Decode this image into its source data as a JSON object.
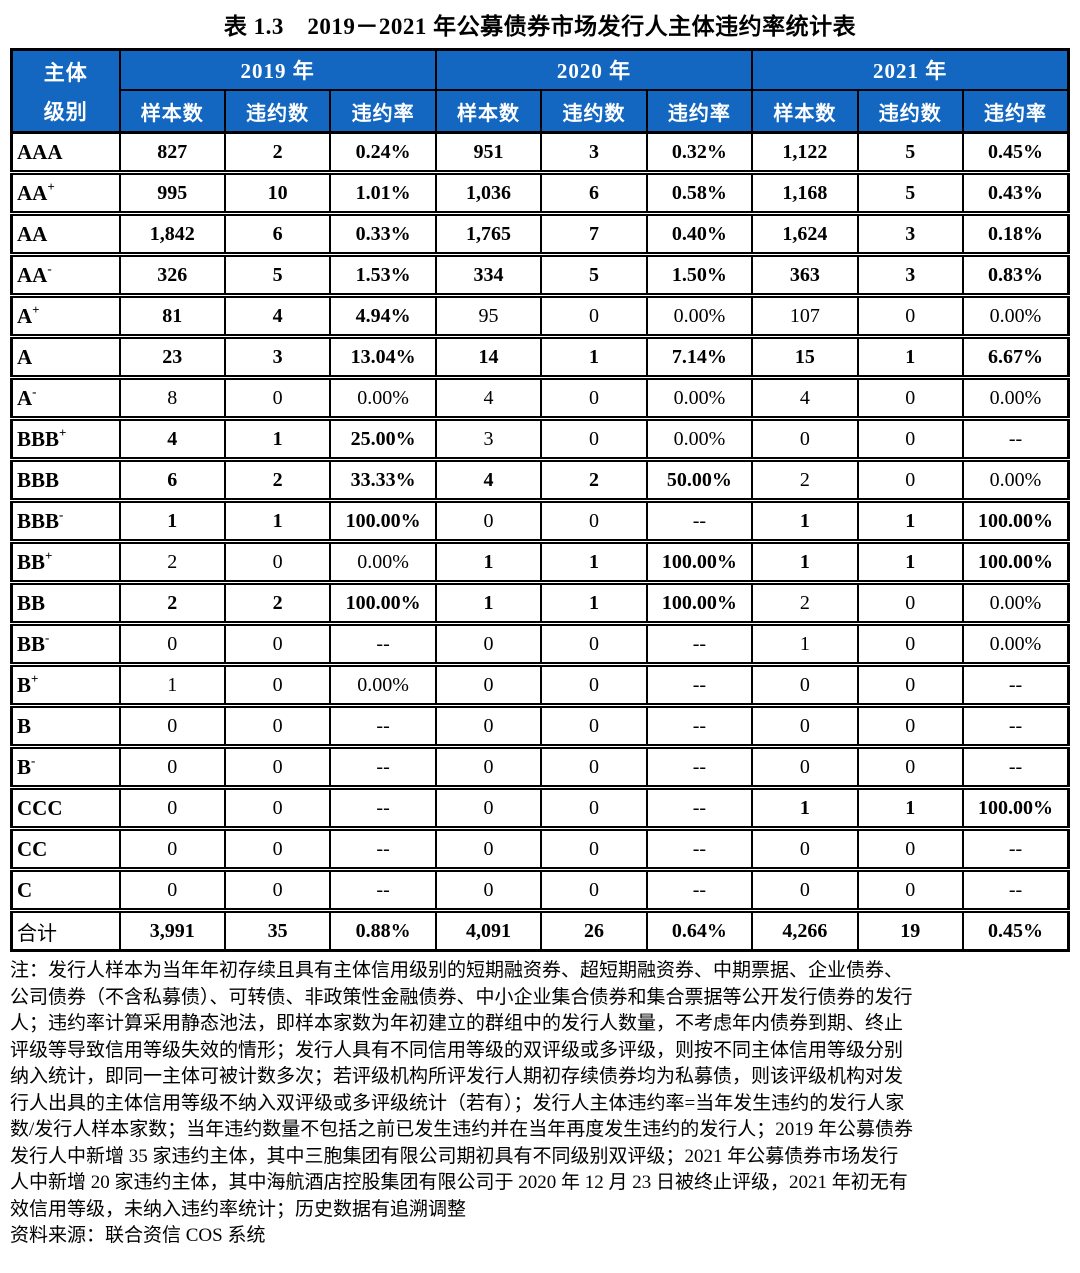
{
  "title": "表 1.3　2019－2021 年公募债券市场发行人主体违约率统计表",
  "colors": {
    "header_bg": "#1467C0",
    "header_text": "#FFFFFF",
    "border": "#000000"
  },
  "table": {
    "corner": {
      "line1": "主体",
      "line2": "级别"
    },
    "years": [
      "2019 年",
      "2020 年",
      "2021 年"
    ],
    "subheaders": [
      "样本数",
      "违约数",
      "违约率"
    ],
    "rows": [
      {
        "base": "AAA",
        "sup": "",
        "cells": [
          {
            "v": "827",
            "b": true
          },
          {
            "v": "2",
            "b": true
          },
          {
            "v": "0.24%",
            "b": true
          },
          {
            "v": "951",
            "b": true
          },
          {
            "v": "3",
            "b": true
          },
          {
            "v": "0.32%",
            "b": true
          },
          {
            "v": "1,122",
            "b": true
          },
          {
            "v": "5",
            "b": true
          },
          {
            "v": "0.45%",
            "b": true
          }
        ]
      },
      {
        "base": "AA",
        "sup": "+",
        "cells": [
          {
            "v": "995",
            "b": true
          },
          {
            "v": "10",
            "b": true
          },
          {
            "v": "1.01%",
            "b": true
          },
          {
            "v": "1,036",
            "b": true
          },
          {
            "v": "6",
            "b": true
          },
          {
            "v": "0.58%",
            "b": true
          },
          {
            "v": "1,168",
            "b": true
          },
          {
            "v": "5",
            "b": true
          },
          {
            "v": "0.43%",
            "b": true
          }
        ]
      },
      {
        "base": "AA",
        "sup": "",
        "cells": [
          {
            "v": "1,842",
            "b": true
          },
          {
            "v": "6",
            "b": true
          },
          {
            "v": "0.33%",
            "b": true
          },
          {
            "v": "1,765",
            "b": true
          },
          {
            "v": "7",
            "b": true
          },
          {
            "v": "0.40%",
            "b": true
          },
          {
            "v": "1,624",
            "b": true
          },
          {
            "v": "3",
            "b": true
          },
          {
            "v": "0.18%",
            "b": true
          }
        ]
      },
      {
        "base": "AA",
        "sup": "-",
        "cells": [
          {
            "v": "326",
            "b": true
          },
          {
            "v": "5",
            "b": true
          },
          {
            "v": "1.53%",
            "b": true
          },
          {
            "v": "334",
            "b": true
          },
          {
            "v": "5",
            "b": true
          },
          {
            "v": "1.50%",
            "b": true
          },
          {
            "v": "363",
            "b": true
          },
          {
            "v": "3",
            "b": true
          },
          {
            "v": "0.83%",
            "b": true
          }
        ]
      },
      {
        "base": "A",
        "sup": "+",
        "cells": [
          {
            "v": "81",
            "b": true
          },
          {
            "v": "4",
            "b": true
          },
          {
            "v": "4.94%",
            "b": true
          },
          {
            "v": "95",
            "b": false
          },
          {
            "v": "0",
            "b": false
          },
          {
            "v": "0.00%",
            "b": false
          },
          {
            "v": "107",
            "b": false
          },
          {
            "v": "0",
            "b": false
          },
          {
            "v": "0.00%",
            "b": false
          }
        ]
      },
      {
        "base": "A",
        "sup": "",
        "cells": [
          {
            "v": "23",
            "b": true
          },
          {
            "v": "3",
            "b": true
          },
          {
            "v": "13.04%",
            "b": true
          },
          {
            "v": "14",
            "b": true
          },
          {
            "v": "1",
            "b": true
          },
          {
            "v": "7.14%",
            "b": true
          },
          {
            "v": "15",
            "b": true
          },
          {
            "v": "1",
            "b": true
          },
          {
            "v": "6.67%",
            "b": true
          }
        ]
      },
      {
        "base": "A",
        "sup": "-",
        "cells": [
          {
            "v": "8",
            "b": false
          },
          {
            "v": "0",
            "b": false
          },
          {
            "v": "0.00%",
            "b": false
          },
          {
            "v": "4",
            "b": false
          },
          {
            "v": "0",
            "b": false
          },
          {
            "v": "0.00%",
            "b": false
          },
          {
            "v": "4",
            "b": false
          },
          {
            "v": "0",
            "b": false
          },
          {
            "v": "0.00%",
            "b": false
          }
        ]
      },
      {
        "base": "BBB",
        "sup": "+",
        "cells": [
          {
            "v": "4",
            "b": true
          },
          {
            "v": "1",
            "b": true
          },
          {
            "v": "25.00%",
            "b": true
          },
          {
            "v": "3",
            "b": false
          },
          {
            "v": "0",
            "b": false
          },
          {
            "v": "0.00%",
            "b": false
          },
          {
            "v": "0",
            "b": false
          },
          {
            "v": "0",
            "b": false
          },
          {
            "v": "--",
            "b": false
          }
        ]
      },
      {
        "base": "BBB",
        "sup": "",
        "cells": [
          {
            "v": "6",
            "b": true
          },
          {
            "v": "2",
            "b": true
          },
          {
            "v": "33.33%",
            "b": true
          },
          {
            "v": "4",
            "b": true
          },
          {
            "v": "2",
            "b": true
          },
          {
            "v": "50.00%",
            "b": true
          },
          {
            "v": "2",
            "b": false
          },
          {
            "v": "0",
            "b": false
          },
          {
            "v": "0.00%",
            "b": false
          }
        ]
      },
      {
        "base": "BBB",
        "sup": "-",
        "cells": [
          {
            "v": "1",
            "b": true
          },
          {
            "v": "1",
            "b": true
          },
          {
            "v": "100.00%",
            "b": true
          },
          {
            "v": "0",
            "b": false
          },
          {
            "v": "0",
            "b": false
          },
          {
            "v": "--",
            "b": false
          },
          {
            "v": "1",
            "b": true
          },
          {
            "v": "1",
            "b": true
          },
          {
            "v": "100.00%",
            "b": true
          }
        ]
      },
      {
        "base": "BB",
        "sup": "+",
        "cells": [
          {
            "v": "2",
            "b": false
          },
          {
            "v": "0",
            "b": false
          },
          {
            "v": "0.00%",
            "b": false
          },
          {
            "v": "1",
            "b": true
          },
          {
            "v": "1",
            "b": true
          },
          {
            "v": "100.00%",
            "b": true
          },
          {
            "v": "1",
            "b": true
          },
          {
            "v": "1",
            "b": true
          },
          {
            "v": "100.00%",
            "b": true
          }
        ]
      },
      {
        "base": "BB",
        "sup": "",
        "cells": [
          {
            "v": "2",
            "b": true
          },
          {
            "v": "2",
            "b": true
          },
          {
            "v": "100.00%",
            "b": true
          },
          {
            "v": "1",
            "b": true
          },
          {
            "v": "1",
            "b": true
          },
          {
            "v": "100.00%",
            "b": true
          },
          {
            "v": "2",
            "b": false
          },
          {
            "v": "0",
            "b": false
          },
          {
            "v": "0.00%",
            "b": false
          }
        ]
      },
      {
        "base": "BB",
        "sup": "-",
        "cells": [
          {
            "v": "0",
            "b": false
          },
          {
            "v": "0",
            "b": false
          },
          {
            "v": "--",
            "b": false
          },
          {
            "v": "0",
            "b": false
          },
          {
            "v": "0",
            "b": false
          },
          {
            "v": "--",
            "b": false
          },
          {
            "v": "1",
            "b": false
          },
          {
            "v": "0",
            "b": false
          },
          {
            "v": "0.00%",
            "b": false
          }
        ]
      },
      {
        "base": "B",
        "sup": "+",
        "cells": [
          {
            "v": "1",
            "b": false
          },
          {
            "v": "0",
            "b": false
          },
          {
            "v": "0.00%",
            "b": false
          },
          {
            "v": "0",
            "b": false
          },
          {
            "v": "0",
            "b": false
          },
          {
            "v": "--",
            "b": false
          },
          {
            "v": "0",
            "b": false
          },
          {
            "v": "0",
            "b": false
          },
          {
            "v": "--",
            "b": false
          }
        ]
      },
      {
        "base": "B",
        "sup": "",
        "cells": [
          {
            "v": "0",
            "b": false
          },
          {
            "v": "0",
            "b": false
          },
          {
            "v": "--",
            "b": false
          },
          {
            "v": "0",
            "b": false
          },
          {
            "v": "0",
            "b": false
          },
          {
            "v": "--",
            "b": false
          },
          {
            "v": "0",
            "b": false
          },
          {
            "v": "0",
            "b": false
          },
          {
            "v": "--",
            "b": false
          }
        ]
      },
      {
        "base": "B",
        "sup": "-",
        "cells": [
          {
            "v": "0",
            "b": false
          },
          {
            "v": "0",
            "b": false
          },
          {
            "v": "--",
            "b": false
          },
          {
            "v": "0",
            "b": false
          },
          {
            "v": "0",
            "b": false
          },
          {
            "v": "--",
            "b": false
          },
          {
            "v": "0",
            "b": false
          },
          {
            "v": "0",
            "b": false
          },
          {
            "v": "--",
            "b": false
          }
        ]
      },
      {
        "base": "CCC",
        "sup": "",
        "cells": [
          {
            "v": "0",
            "b": false
          },
          {
            "v": "0",
            "b": false
          },
          {
            "v": "--",
            "b": false
          },
          {
            "v": "0",
            "b": false
          },
          {
            "v": "0",
            "b": false
          },
          {
            "v": "--",
            "b": false
          },
          {
            "v": "1",
            "b": true
          },
          {
            "v": "1",
            "b": true
          },
          {
            "v": "100.00%",
            "b": true
          }
        ]
      },
      {
        "base": "CC",
        "sup": "",
        "cells": [
          {
            "v": "0",
            "b": false
          },
          {
            "v": "0",
            "b": false
          },
          {
            "v": "--",
            "b": false
          },
          {
            "v": "0",
            "b": false
          },
          {
            "v": "0",
            "b": false
          },
          {
            "v": "--",
            "b": false
          },
          {
            "v": "0",
            "b": false
          },
          {
            "v": "0",
            "b": false
          },
          {
            "v": "--",
            "b": false
          }
        ]
      },
      {
        "base": "C",
        "sup": "",
        "cells": [
          {
            "v": "0",
            "b": false
          },
          {
            "v": "0",
            "b": false
          },
          {
            "v": "--",
            "b": false
          },
          {
            "v": "0",
            "b": false
          },
          {
            "v": "0",
            "b": false
          },
          {
            "v": "--",
            "b": false
          },
          {
            "v": "0",
            "b": false
          },
          {
            "v": "0",
            "b": false
          },
          {
            "v": "--",
            "b": false
          }
        ]
      },
      {
        "base": "合计",
        "sup": "",
        "lb": false,
        "cells": [
          {
            "v": "3,991",
            "b": true
          },
          {
            "v": "35",
            "b": true
          },
          {
            "v": "0.88%",
            "b": true
          },
          {
            "v": "4,091",
            "b": true
          },
          {
            "v": "26",
            "b": true
          },
          {
            "v": "0.64%",
            "b": true
          },
          {
            "v": "4,266",
            "b": true
          },
          {
            "v": "19",
            "b": true
          },
          {
            "v": "0.45%",
            "b": true
          }
        ]
      }
    ]
  },
  "notes": {
    "lines": [
      "注：发行人样本为当年年初存续且具有主体信用级别的短期融资券、超短期融资券、中期票据、企业债券、",
      "公司债券（不含私募债）、可转债、非政策性金融债券、中小企业集合债券和集合票据等公开发行债券的发行",
      "人；违约率计算采用静态池法，即样本家数为年初建立的群组中的发行人数量，不考虑年内债券到期、终止",
      "评级等导致信用等级失效的情形；发行人具有不同信用等级的双评级或多评级，则按不同主体信用等级分别",
      "纳入统计，即同一主体可被计数多次；若评级机构所评发行人期初存续债券均为私募债，则该评级机构对发",
      "行人出具的主体信用等级不纳入双评级或多评级统计（若有）；发行人主体违约率=当年发生违约的发行人家",
      "数/发行人样本家数；当年违约数量不包括之前已发生违约并在当年再度发生违约的发行人；2019 年公募债券",
      "发行人中新增 35 家违约主体，其中三胞集团有限公司期初具有不同级别双评级；2021 年公募债券市场发行",
      "人中新增 20 家违约主体，其中海航酒店控股集团有限公司于 2020 年 12 月 23 日被终止评级，2021 年初无有",
      "效信用等级，未纳入违约率统计；历史数据有追溯调整"
    ]
  },
  "source": "资料来源：联合资信 COS 系统"
}
